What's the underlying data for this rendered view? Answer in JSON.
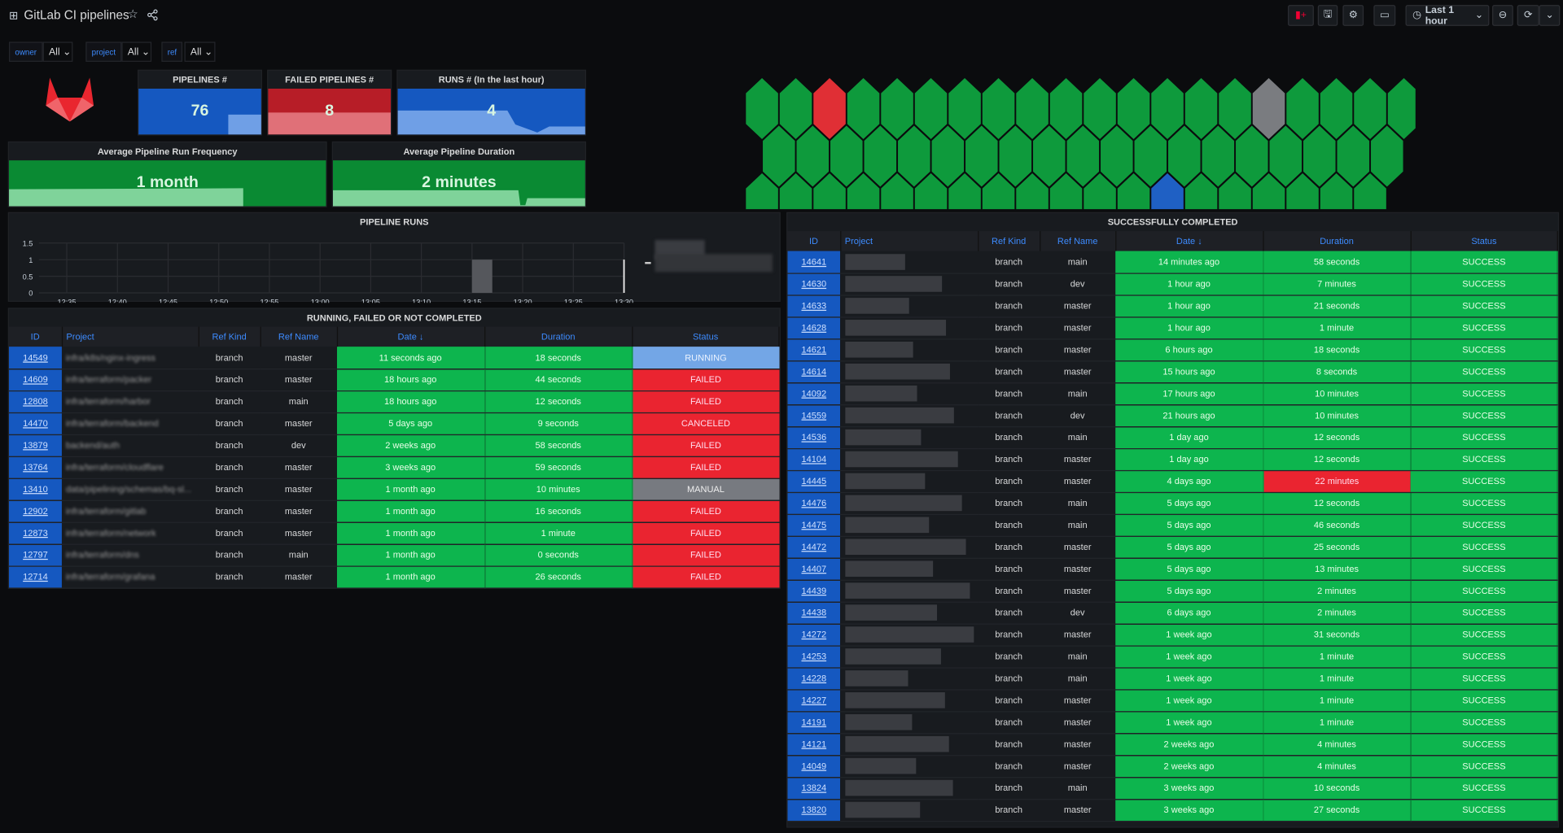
{
  "header": {
    "title": "GitLab CI pipelines",
    "time_range": "Last 1 hour",
    "icons": [
      "dashboard-grid-icon",
      "star-icon",
      "share-icon",
      "add-panel-icon",
      "save-icon",
      "settings-icon",
      "tv-mode-icon",
      "clock-icon",
      "zoom-out-icon",
      "refresh-icon",
      "chevron-down-icon"
    ]
  },
  "variables": [
    {
      "label": "owner",
      "value": "All"
    },
    {
      "label": "project",
      "value": "All"
    },
    {
      "label": "ref",
      "value": "All"
    }
  ],
  "stats": {
    "pipelines": {
      "title": "PIPELINES #",
      "value": "76",
      "color": "#1f60c4"
    },
    "failed": {
      "title": "FAILED PIPELINES #",
      "value": "8",
      "color": "#c4162a"
    },
    "runs": {
      "title": "RUNS # (In the last hour)",
      "value": "4",
      "color": "#1f60c4"
    },
    "frequency": {
      "title": "Average Pipeline Run Frequency",
      "value": "1 month",
      "color": "#0e8a36"
    },
    "duration": {
      "title": "Average Pipeline Duration",
      "value": "2 minutes",
      "color": "#0e8a36"
    }
  },
  "hexmap": {
    "colors": {
      "s": "#0e9a3c",
      "f": "#e02f35",
      "r": "#1f60c4",
      "m": "#7a7c80"
    },
    "rows": [
      "ssfssssssssssssmssss",
      "sssssssssssssssssss",
      "ssssssssssssrssssss",
      "sssfsfssfsfffsfsfss"
    ]
  },
  "chart_data": {
    "type": "bar",
    "title": "PIPELINE RUNS",
    "x_ticks": [
      "12:35",
      "12:40",
      "12:45",
      "12:50",
      "12:55",
      "13:00",
      "13:05",
      "13:10",
      "13:15",
      "13:20",
      "13:25",
      "13:30"
    ],
    "y_ticks": [
      0,
      0.5,
      1.0,
      1.5
    ],
    "ylim": [
      0,
      1.5
    ],
    "grid": true,
    "legend": "right",
    "series": [
      {
        "points": [
          {
            "x_start": "13:15",
            "x_end": "13:17",
            "y": 1
          }
        ]
      },
      {
        "points": [
          {
            "x": "13:30",
            "y": 1
          }
        ]
      }
    ]
  },
  "running": {
    "title": "RUNNING, FAILED OR NOT COMPLETED",
    "columns": [
      "ID",
      "Project",
      "Ref Kind",
      "Ref Name",
      "Date ↓",
      "Duration",
      "Status"
    ],
    "rows": [
      [
        "14549",
        "infra/k8s/nginx-ingress",
        "branch",
        "master",
        "11 seconds ago",
        "18 seconds",
        "RUNNING"
      ],
      [
        "14609",
        "infra/terraform/packer",
        "branch",
        "master",
        "18 hours ago",
        "44 seconds",
        "FAILED"
      ],
      [
        "12808",
        "infra/terraform/harbor",
        "branch",
        "main",
        "18 hours ago",
        "12 seconds",
        "FAILED"
      ],
      [
        "14470",
        "infra/terraform/backend",
        "branch",
        "master",
        "5 days ago",
        "9 seconds",
        "CANCELED"
      ],
      [
        "13879",
        "backend/auth",
        "branch",
        "dev",
        "2 weeks ago",
        "58 seconds",
        "FAILED"
      ],
      [
        "13764",
        "infra/terraform/cloudflare",
        "branch",
        "master",
        "3 weeks ago",
        "59 seconds",
        "FAILED"
      ],
      [
        "13410",
        "data/pipelining/schemas/bq-sl...",
        "branch",
        "master",
        "1 month ago",
        "10 minutes",
        "MANUAL"
      ],
      [
        "12902",
        "infra/terraform/gitlab",
        "branch",
        "master",
        "1 month ago",
        "16 seconds",
        "FAILED"
      ],
      [
        "12873",
        "infra/terraform/network",
        "branch",
        "master",
        "1 month ago",
        "1 minute",
        "FAILED"
      ],
      [
        "12797",
        "infra/terraform/dns",
        "branch",
        "main",
        "1 month ago",
        "0 seconds",
        "FAILED"
      ],
      [
        "12714",
        "infra/terraform/grafana",
        "branch",
        "master",
        "1 month ago",
        "26 seconds",
        "FAILED"
      ]
    ]
  },
  "success": {
    "title": "SUCCESSFULLY COMPLETED",
    "columns": [
      "ID",
      "Project",
      "Ref Kind",
      "Ref Name",
      "Date ↓",
      "Duration",
      "Status"
    ],
    "rows": [
      [
        "14641",
        "",
        "branch",
        "main",
        "14 minutes ago",
        "58 seconds",
        "SUCCESS"
      ],
      [
        "14630",
        "",
        "branch",
        "dev",
        "1 hour ago",
        "7 minutes",
        "SUCCESS"
      ],
      [
        "14633",
        "",
        "branch",
        "master",
        "1 hour ago",
        "21 seconds",
        "SUCCESS"
      ],
      [
        "14628",
        "",
        "branch",
        "master",
        "1 hour ago",
        "1 minute",
        "SUCCESS"
      ],
      [
        "14621",
        "",
        "branch",
        "master",
        "6 hours ago",
        "18 seconds",
        "SUCCESS"
      ],
      [
        "14614",
        "",
        "branch",
        "master",
        "15 hours ago",
        "8 seconds",
        "SUCCESS"
      ],
      [
        "14092",
        "",
        "branch",
        "main",
        "17 hours ago",
        "10 minutes",
        "SUCCESS"
      ],
      [
        "14559",
        "",
        "branch",
        "dev",
        "21 hours ago",
        "10 minutes",
        "SUCCESS"
      ],
      [
        "14536",
        "",
        "branch",
        "main",
        "1 day ago",
        "12 seconds",
        "SUCCESS"
      ],
      [
        "14104",
        "",
        "branch",
        "master",
        "1 day ago",
        "12 seconds",
        "SUCCESS"
      ],
      [
        "14445",
        "",
        "branch",
        "master",
        "4 days ago",
        "22 minutes",
        "SUCCESS"
      ],
      [
        "14476",
        "",
        "branch",
        "main",
        "5 days ago",
        "12 seconds",
        "SUCCESS"
      ],
      [
        "14475",
        "",
        "branch",
        "main",
        "5 days ago",
        "46 seconds",
        "SUCCESS"
      ],
      [
        "14472",
        "",
        "branch",
        "master",
        "5 days ago",
        "25 seconds",
        "SUCCESS"
      ],
      [
        "14407",
        "",
        "branch",
        "master",
        "5 days ago",
        "13 minutes",
        "SUCCESS"
      ],
      [
        "14439",
        "",
        "branch",
        "master",
        "5 days ago",
        "2 minutes",
        "SUCCESS"
      ],
      [
        "14438",
        "",
        "branch",
        "dev",
        "6 days ago",
        "2 minutes",
        "SUCCESS"
      ],
      [
        "14272",
        "",
        "branch",
        "master",
        "1 week ago",
        "31 seconds",
        "SUCCESS"
      ],
      [
        "14253",
        "",
        "branch",
        "main",
        "1 week ago",
        "1 minute",
        "SUCCESS"
      ],
      [
        "14228",
        "",
        "branch",
        "main",
        "1 week ago",
        "1 minute",
        "SUCCESS"
      ],
      [
        "14227",
        "",
        "branch",
        "master",
        "1 week ago",
        "1 minute",
        "SUCCESS"
      ],
      [
        "14191",
        "",
        "branch",
        "master",
        "1 week ago",
        "1 minute",
        "SUCCESS"
      ],
      [
        "14121",
        "",
        "branch",
        "master",
        "2 weeks ago",
        "4 minutes",
        "SUCCESS"
      ],
      [
        "14049",
        "",
        "branch",
        "master",
        "2 weeks ago",
        "4 minutes",
        "SUCCESS"
      ],
      [
        "13824",
        "",
        "branch",
        "main",
        "3 weeks ago",
        "10 seconds",
        "SUCCESS"
      ],
      [
        "13820",
        "",
        "branch",
        "master",
        "3 weeks ago",
        "27 seconds",
        "SUCCESS"
      ]
    ],
    "long_duration_highlight": "22 minutes"
  }
}
